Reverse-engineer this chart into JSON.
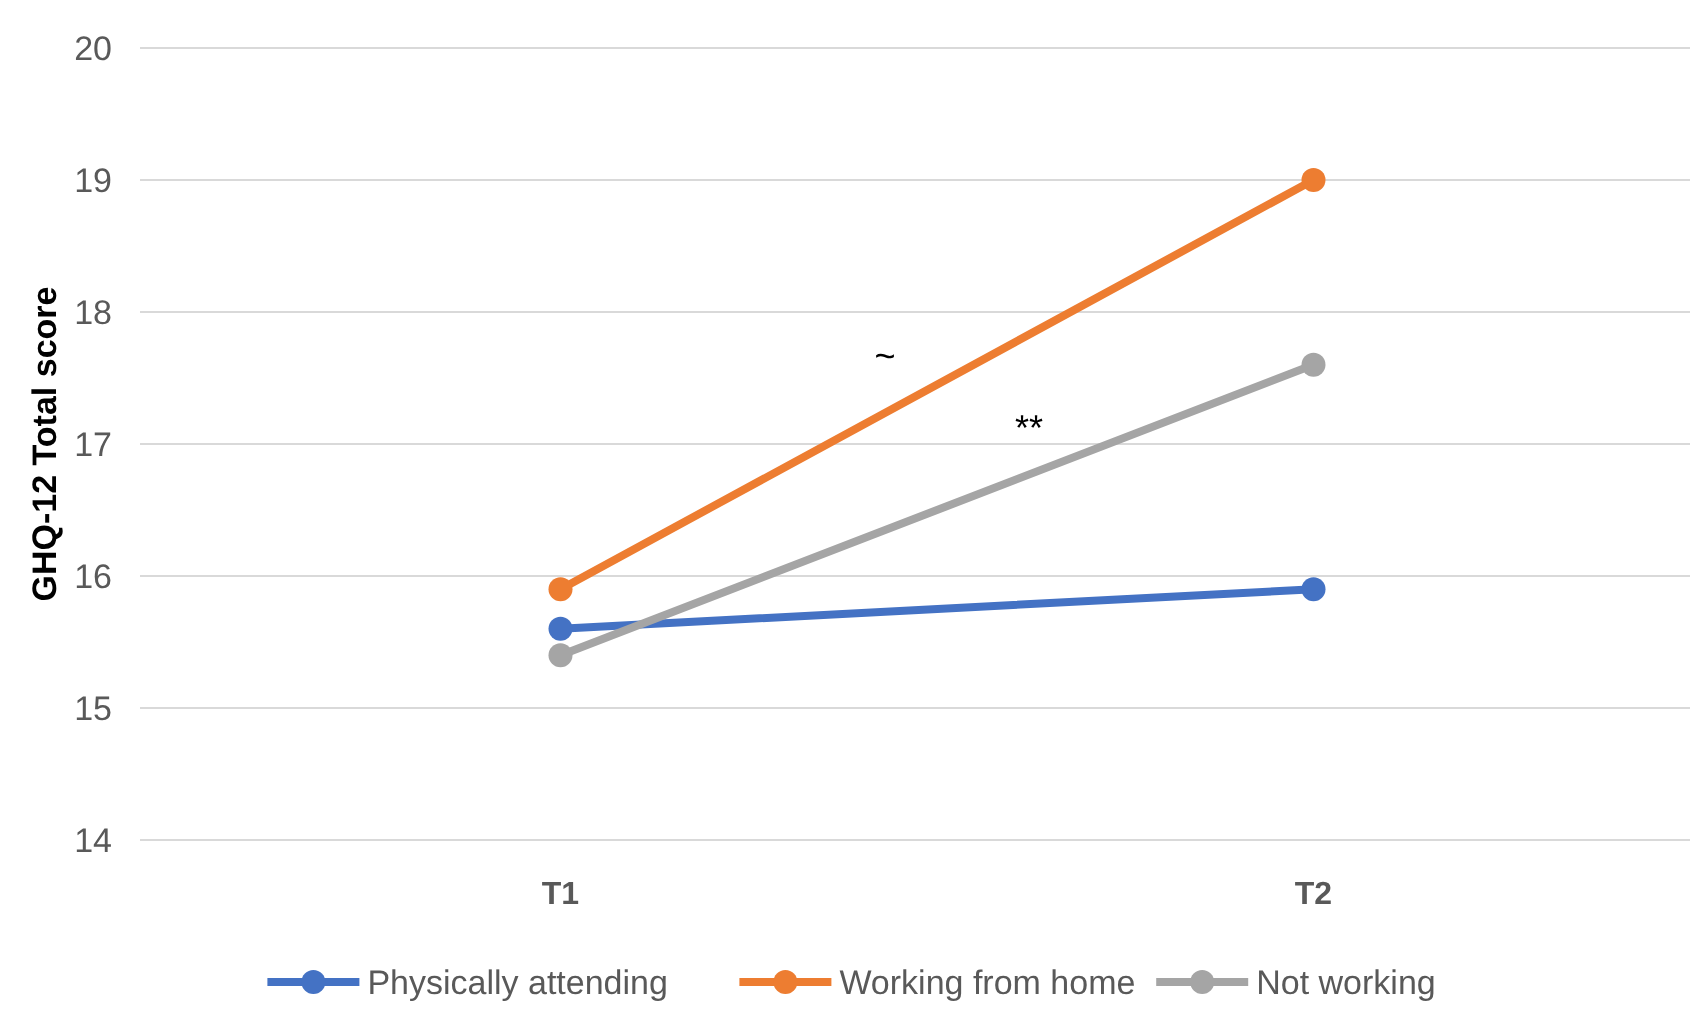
{
  "chart_data": {
    "type": "line",
    "ylabel": "GHQ-12 Total score",
    "categories": [
      "T1",
      "T2"
    ],
    "series": [
      {
        "name": "Physically attending",
        "color": "#4472c4",
        "values": [
          15.6,
          15.9
        ]
      },
      {
        "name": "Working from home",
        "color": "#ed7d31",
        "values": [
          15.9,
          19.0
        ]
      },
      {
        "name": "Not working",
        "color": "#a5a5a5",
        "values": [
          15.4,
          17.6
        ]
      }
    ],
    "annotations": [
      "~",
      "**"
    ],
    "ylim": [
      14,
      20
    ],
    "yticks": [
      14,
      15,
      16,
      17,
      18,
      19,
      20
    ],
    "grid": "y",
    "legend": "bottom",
    "marker": "circle",
    "line_style": "solid"
  }
}
